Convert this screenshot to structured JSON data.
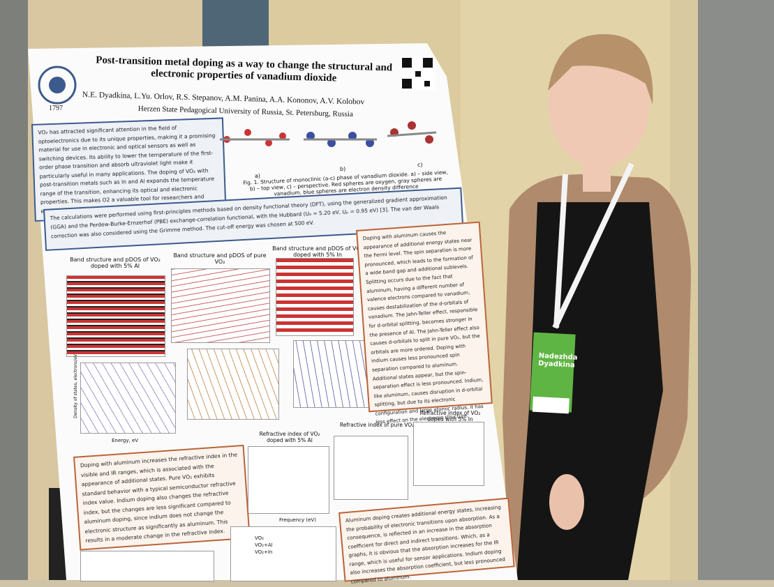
{
  "poster": {
    "title": "Post-transition metal doping as a way to change the structural and electronic properties of vanadium dioxide",
    "year": "1797",
    "authors": "N.E. Dyadkina, L.Yu. Orlov, R.S. Stepanov, A.M. Panina, A.A. Kononov, A.V. Kolobov",
    "affiliation": "Herzen State Pedagogical University of Russia, St. Petersburg, Russia",
    "intro": "VO₂ has attracted significant attention in the field of optoelectronics due to its unique properties, making it a promising material for use in electronic and optical sensors as well as switching devices. Its ability to lower the temperature of the first-order phase transition and absorb ultraviolet light make it particularly useful in many applications. The doping of VO₂ with post-transition metals such as In and Al expands the temperature range of the transition, enhancing its optical and electronic properties. This makes O2 a valuable tool for researchers and engineers seeking to develop new applications for the material.",
    "fig_labels": [
      "a)",
      "b)",
      "c)"
    ],
    "fig_caption": "Fig. 1. Structure of monoclinic (a-c) phase of vanadium dioxide. a) – side view, b) – top view, c) – perspective. Red spheres are oxygen, gray spheres are vanadium, blue spheres are electron density difference",
    "methods": "The calculations were performed using first-principles methods based on density functional theory (DFT), using the generalized gradient approximation (GGA) and the Perdew-Burke-Ernzerhof (PBE) exchange-correlation functional, with the Hubbard (U₀ = 5.20 eV, Uₚ = 0.95 eV) [3]. The van der Waals correction was also considered using the Grimme method. The cut-off energy was chosen at 500 eV.",
    "band_titles": [
      "Band structure and pDOS of VO₂ doped with 5% Al",
      "Band structure and pDOS of pure VO₂",
      "Band structure and pDOS of VO₂ doped with 5% In"
    ],
    "band_axis": [
      "Energy, eV",
      "Density of states, electrons/eV"
    ],
    "doping_text": "Doping with aluminum causes the appearance of additional energy states near the Fermi level. The spin separation is more pronounced, which leads to the formation of a wide band gap and additional sublevels. Splitting occurs due to the fact that aluminum, having a different number of valence electrons compared to vanadium, causes destabilization of the d-orbitals of vanadium. The Jahn-Teller effect, responsible for d-orbital splitting, becomes stronger in the presence of Al. The Jahn-Teller effect also causes d-orbitals to split in pure VO₂, but the orbitals are more ordered. Doping with indium causes less pronounced spin separation compared to aluminum. Additional states appear, but the spin-separation effect is less pronounced. Indium, like aluminum, causes disruption in d-orbital splitting, but due to its electronic configuration and large atomic radius, it has less effect on the electronic structure.",
    "refractive_titles": [
      "Refractive index of VO₂ doped with 5% Al",
      "Refractive index of pure VO₂",
      "Refractive index of VO₂ doped with 5% In"
    ],
    "refractive_axis": "Frequency (eV)",
    "refractive_text": "Doping with aluminum increases the refractive index in the visible and IR ranges, which is associated with the appearance of additional states. Pure VO₂ exhibits standard behavior with a typical semiconductor refractive index value. Indium doping also changes the refractive index, but the changes are less significant compared to aluminum doping, since indium does not change the electronic structure as significantly as aluminum. This results in a moderate change in the refractive index.",
    "absorption_legend": [
      "VO₂",
      "VO₂+Al",
      "VO₂+In"
    ],
    "absorption_text": "Aluminum doping creates additional energy states, increasing the probability of electronic transitions upon absorption. As a consequence, is reflected in an increase in the absorption coefficient for direct and indirect transitions. Which, as a graphs, it is obvious that the absorption increases for the IR range, which is useful for sensor applications. Indium doping also increases the absorption coefficient, but less pronounced compared to aluminum."
  },
  "badge": {
    "name": "Nadezhda Dyadkina"
  }
}
